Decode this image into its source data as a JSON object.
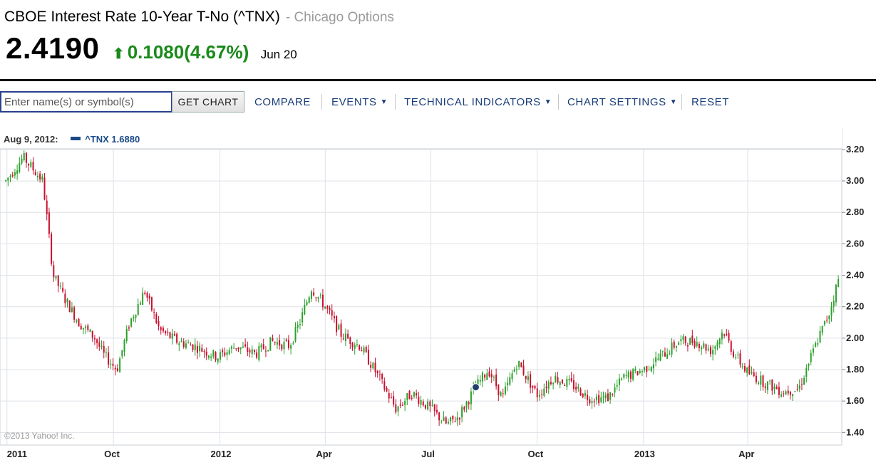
{
  "header": {
    "title": "CBOE Interest Rate 10-Year T-No (^TNX)",
    "exchange": "- Chicago Options",
    "price": "2.4190",
    "change": "0.1080",
    "change_pct": "(4.67%)",
    "date": "Jun 20",
    "change_color": "#1a8a1a"
  },
  "toolbar": {
    "search_placeholder": "Enter name(s) or symbol(s)",
    "get_chart": "GET CHART",
    "compare": "COMPARE",
    "events": "EVENTS",
    "technical_indicators": "TECHNICAL INDICATORS",
    "chart_settings": "CHART SETTINGS",
    "reset": "RESET",
    "link_color": "#1a3d7a"
  },
  "legend": {
    "date": "Aug 9, 2012:",
    "series": "^TNX 1.6880"
  },
  "copyright": "©2013 Yahoo! Inc.",
  "chart_data": {
    "type": "line",
    "style": "candlestick",
    "title": "",
    "x_tick_labels": [
      "2011",
      "Oct",
      "2012",
      "Apr",
      "Jul",
      "Oct",
      "2013",
      "Apr"
    ],
    "y_tick_labels": [
      "3.20",
      "3.00",
      "2.80",
      "2.60",
      "2.40",
      "2.20",
      "2.00",
      "1.80",
      "1.60",
      "1.40"
    ],
    "ylim": [
      1.32,
      3.34
    ],
    "y_axis_side": "right",
    "grid": true,
    "up_color": "#2aa02a",
    "down_color": "#c8102e",
    "marker": {
      "x": "2012-08-09",
      "y": 1.688
    },
    "series": [
      {
        "name": "^TNX",
        "x": [
          "2011-06-30",
          "2011-07-15",
          "2011-08-01",
          "2011-08-10",
          "2011-08-20",
          "2011-09-01",
          "2011-09-15",
          "2011-09-22",
          "2011-10-04",
          "2011-10-15",
          "2011-10-28",
          "2011-11-10",
          "2011-11-25",
          "2011-12-10",
          "2011-12-30",
          "2012-01-15",
          "2012-02-01",
          "2012-02-15",
          "2012-03-01",
          "2012-03-10",
          "2012-03-20",
          "2012-04-01",
          "2012-04-15",
          "2012-05-01",
          "2012-05-15",
          "2012-06-01",
          "2012-06-15",
          "2012-07-01",
          "2012-07-15",
          "2012-07-25",
          "2012-08-09",
          "2012-08-20",
          "2012-09-01",
          "2012-09-14",
          "2012-10-01",
          "2012-10-15",
          "2012-11-01",
          "2012-11-15",
          "2012-12-01",
          "2012-12-15",
          "2013-01-01",
          "2013-01-15",
          "2013-02-01",
          "2013-02-15",
          "2013-03-01",
          "2013-03-11",
          "2013-03-20",
          "2013-04-01",
          "2013-04-15",
          "2013-05-01",
          "2013-05-15",
          "2013-06-01",
          "2013-06-10",
          "2013-06-20"
        ],
        "y": [
          3.0,
          3.15,
          3.0,
          2.4,
          2.25,
          2.1,
          2.0,
          1.9,
          1.8,
          2.1,
          2.3,
          2.05,
          1.98,
          1.95,
          1.88,
          1.95,
          1.9,
          1.98,
          1.95,
          2.1,
          2.32,
          2.2,
          2.02,
          1.95,
          1.78,
          1.55,
          1.65,
          1.55,
          1.45,
          1.5,
          1.69,
          1.8,
          1.62,
          1.85,
          1.64,
          1.75,
          1.7,
          1.62,
          1.62,
          1.75,
          1.8,
          1.88,
          1.98,
          1.98,
          1.92,
          2.05,
          1.9,
          1.78,
          1.72,
          1.66,
          1.68,
          2.0,
          2.15,
          2.42
        ]
      }
    ]
  }
}
